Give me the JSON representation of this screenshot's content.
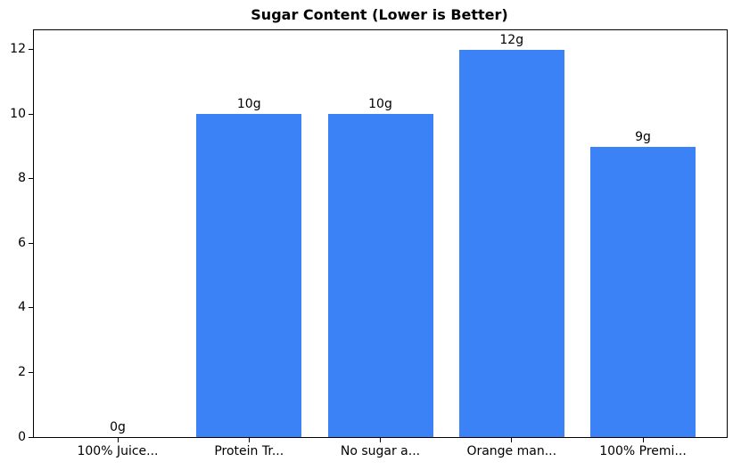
{
  "chart_data": {
    "type": "bar",
    "title": "Sugar Content (Lower is Better)",
    "categories": [
      "100% Juice...",
      "Protein Tr...",
      "No sugar a...",
      "Orange man...",
      "100% Premi..."
    ],
    "values": [
      0,
      10,
      10,
      12,
      9
    ],
    "bar_labels": [
      "0g",
      "10g",
      "10g",
      "12g",
      "9g"
    ],
    "xlabel": "",
    "ylabel": "",
    "ylim": [
      0,
      12.6
    ],
    "yticks": [
      0,
      2,
      4,
      6,
      8,
      10,
      12
    ],
    "grid": false,
    "legend": "none",
    "colors": {
      "bar": "#3b82f6",
      "axis": "#000000",
      "text": "#000000",
      "background": "#ffffff"
    }
  }
}
